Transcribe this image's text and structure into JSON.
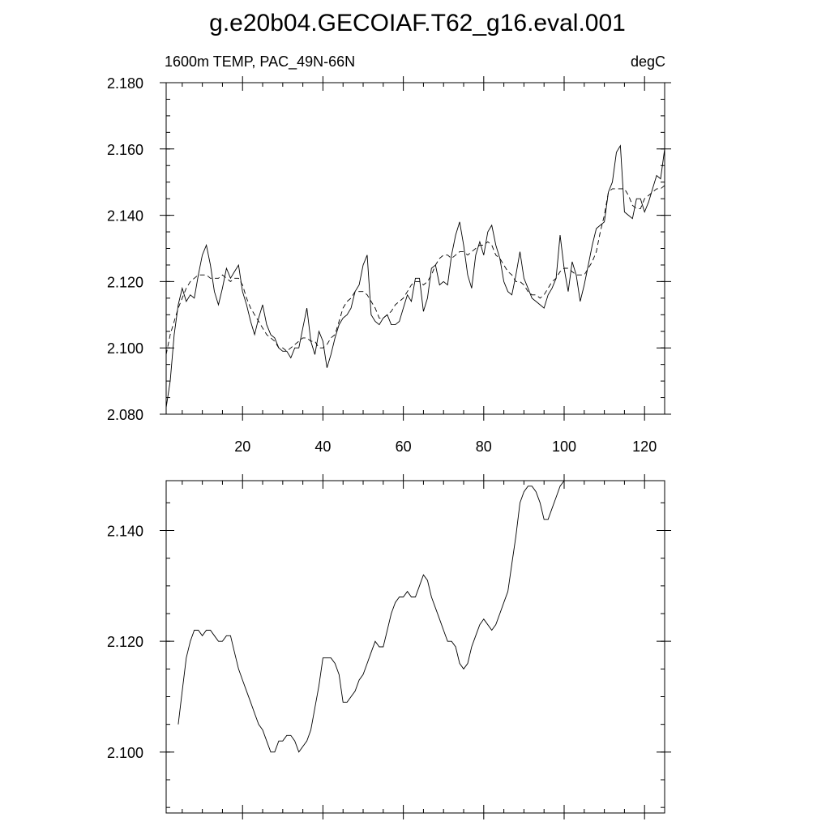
{
  "title": "g.e20b04.GECOIAF.T62_g16.eval.001",
  "colors": {
    "line": "#000000",
    "background": "#ffffff"
  },
  "chart_data": [
    {
      "type": "line",
      "left_label": "1600m TEMP, PAC_49N-66N",
      "right_label": "degC",
      "xlim": [
        1,
        125
      ],
      "ylim": [
        2.08,
        2.18
      ],
      "x_ticks": [
        20,
        40,
        60,
        80,
        100,
        120
      ],
      "y_ticks": [
        "2.080",
        "2.100",
        "2.120",
        "2.140",
        "2.160",
        "2.180"
      ],
      "y_tick_values": [
        2.08,
        2.1,
        2.12,
        2.14,
        2.16,
        2.18
      ],
      "grid": false,
      "series": [
        {
          "style": "solid",
          "values": [
            2.082,
            2.09,
            2.104,
            2.113,
            2.118,
            2.114,
            2.116,
            2.115,
            2.122,
            2.128,
            2.131,
            2.125,
            2.117,
            2.113,
            2.118,
            2.124,
            2.121,
            2.123,
            2.125,
            2.117,
            2.113,
            2.108,
            2.104,
            2.109,
            2.113,
            2.107,
            2.104,
            2.103,
            2.1,
            2.099,
            2.099,
            2.097,
            2.1,
            2.1,
            2.106,
            2.112,
            2.102,
            2.098,
            2.105,
            2.102,
            2.094,
            2.098,
            2.103,
            2.107,
            2.109,
            2.11,
            2.112,
            2.117,
            2.119,
            2.125,
            2.128,
            2.11,
            2.108,
            2.107,
            2.109,
            2.11,
            2.107,
            2.107,
            2.108,
            2.112,
            2.116,
            2.114,
            2.121,
            2.121,
            2.111,
            2.115,
            2.124,
            2.125,
            2.119,
            2.12,
            2.119,
            2.128,
            2.134,
            2.138,
            2.131,
            2.122,
            2.118,
            2.128,
            2.132,
            2.128,
            2.135,
            2.137,
            2.131,
            2.127,
            2.12,
            2.117,
            2.116,
            2.122,
            2.129,
            2.121,
            2.118,
            2.115,
            2.114,
            2.113,
            2.112,
            2.116,
            2.118,
            2.121,
            2.134,
            2.124,
            2.117,
            2.126,
            2.122,
            2.114,
            2.119,
            2.125,
            2.131,
            2.136,
            2.137,
            2.138,
            2.147,
            2.15,
            2.159,
            2.161,
            2.141,
            2.14,
            2.139,
            2.145,
            2.145,
            2.141,
            2.144,
            2.148,
            2.152,
            2.151,
            2.16
          ]
        },
        {
          "style": "dashed",
          "values": [
            2.098,
            2.104,
            2.108,
            2.112,
            2.115,
            2.118,
            2.12,
            2.121,
            2.122,
            2.122,
            2.122,
            2.121,
            2.121,
            2.121,
            2.122,
            2.121,
            2.12,
            2.121,
            2.121,
            2.119,
            2.115,
            2.112,
            2.11,
            2.108,
            2.106,
            2.104,
            2.103,
            2.102,
            2.1,
            2.1,
            2.099,
            2.1,
            2.101,
            2.102,
            2.103,
            2.103,
            2.102,
            2.102,
            2.1,
            2.1,
            2.101,
            2.103,
            2.104,
            2.108,
            2.112,
            2.114,
            2.115,
            2.117,
            2.117,
            2.117,
            2.116,
            2.114,
            2.112,
            2.109,
            2.109,
            2.11,
            2.111,
            2.113,
            2.114,
            2.115,
            2.117,
            2.119,
            2.12,
            2.12,
            2.119,
            2.12,
            2.122,
            2.125,
            2.127,
            2.128,
            2.128,
            2.127,
            2.128,
            2.129,
            2.129,
            2.128,
            2.129,
            2.13,
            2.131,
            2.131,
            2.132,
            2.131,
            2.128,
            2.127,
            2.125,
            2.123,
            2.122,
            2.12,
            2.12,
            2.119,
            2.117,
            2.116,
            2.116,
            2.115,
            2.116,
            2.118,
            2.12,
            2.121,
            2.123,
            2.124,
            2.124,
            2.123,
            2.122,
            2.122,
            2.122,
            2.124,
            2.126,
            2.129,
            2.135,
            2.14,
            2.147,
            2.148,
            2.148,
            2.148,
            2.148,
            2.146,
            2.143,
            2.142,
            2.142,
            2.145,
            2.146,
            2.147,
            2.148,
            2.148,
            2.149
          ]
        }
      ]
    },
    {
      "type": "line",
      "xlim": [
        1,
        125
      ],
      "ylim": [
        2.089,
        2.149
      ],
      "x_ticks": [
        20,
        40,
        60,
        80,
        100,
        120
      ],
      "y_ticks": [
        "2.100",
        "2.120",
        "2.140"
      ],
      "y_tick_values": [
        2.1,
        2.12,
        2.14
      ],
      "grid": false,
      "series": [
        {
          "style": "solid",
          "x_start": 4,
          "values": [
            2.105,
            2.111,
            2.117,
            2.12,
            2.122,
            2.122,
            2.121,
            2.122,
            2.122,
            2.121,
            2.12,
            2.12,
            2.121,
            2.121,
            2.118,
            2.115,
            2.113,
            2.111,
            2.109,
            2.107,
            2.105,
            2.104,
            2.102,
            2.1,
            2.1,
            2.102,
            2.102,
            2.103,
            2.103,
            2.102,
            2.1,
            2.101,
            2.102,
            2.104,
            2.108,
            2.112,
            2.117,
            2.117,
            2.117,
            2.116,
            2.114,
            2.109,
            2.109,
            2.11,
            2.111,
            2.113,
            2.114,
            2.116,
            2.118,
            2.12,
            2.119,
            2.119,
            2.122,
            2.125,
            2.127,
            2.128,
            2.128,
            2.129,
            2.128,
            2.128,
            2.13,
            2.132,
            2.131,
            2.128,
            2.126,
            2.124,
            2.122,
            2.12,
            2.12,
            2.119,
            2.116,
            2.115,
            2.116,
            2.119,
            2.121,
            2.123,
            2.124,
            2.123,
            2.122,
            2.123,
            2.125,
            2.127,
            2.129,
            2.134,
            2.139,
            2.145,
            2.147,
            2.148,
            2.148,
            2.147,
            2.145,
            2.142,
            2.142,
            2.144,
            2.146,
            2.148,
            2.149
          ]
        }
      ]
    }
  ]
}
